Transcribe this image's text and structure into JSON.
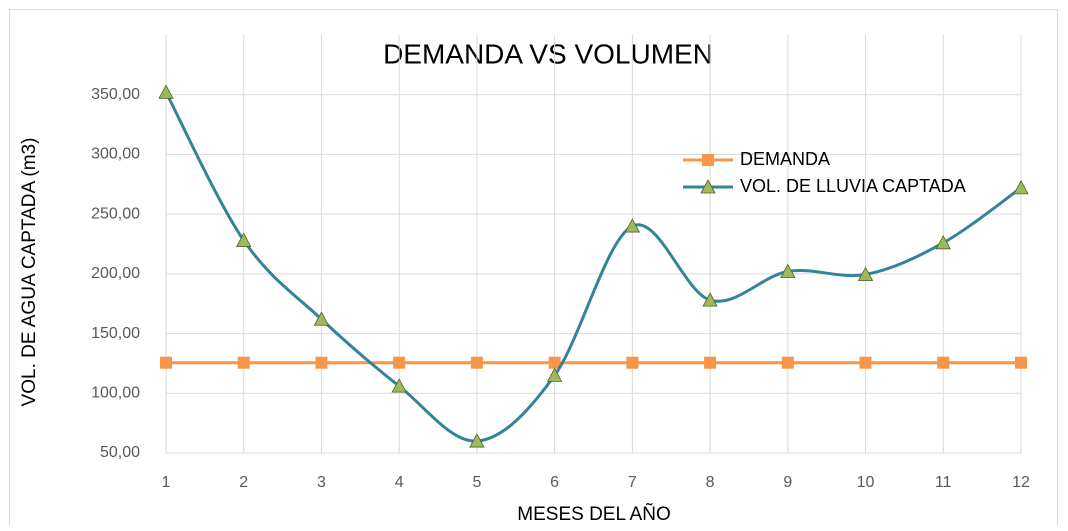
{
  "chart_data": {
    "type": "line",
    "title": "DEMANDA VS VOLUMEN",
    "xlabel": "MESES DEL AÑO",
    "ylabel": "VOL. DE AGUA CAPTADA (m3)",
    "categories": [
      "1",
      "2",
      "3",
      "4",
      "5",
      "6",
      "7",
      "8",
      "9",
      "10",
      "11",
      "12"
    ],
    "series": [
      {
        "name": "DEMANDA",
        "color": "#f79646",
        "marker": "square",
        "values": [
          125.6,
          125.6,
          125.6,
          125.6,
          125.6,
          125.6,
          125.6,
          125.6,
          125.6,
          125.6,
          125.6,
          125.6
        ]
      },
      {
        "name": "VOL. DE LLUVIA CAPTADA",
        "color": "#31849b",
        "marker": "triangle",
        "marker_color": "#9bbb59",
        "values": [
          352,
          228,
          162,
          106,
          60,
          115,
          240,
          178,
          202,
          199.5,
          226,
          272
        ]
      }
    ],
    "ylim": [
      50,
      400
    ],
    "yticks": [
      {
        "value": 50,
        "label": "50,00"
      },
      {
        "value": 100,
        "label": "100,00"
      },
      {
        "value": 150,
        "label": "150,00"
      },
      {
        "value": 200,
        "label": "200,00"
      },
      {
        "value": 250,
        "label": "250,00"
      },
      {
        "value": 300,
        "label": "300,00"
      },
      {
        "value": 350,
        "label": "350,00"
      }
    ],
    "grid": true,
    "smooth": true
  }
}
